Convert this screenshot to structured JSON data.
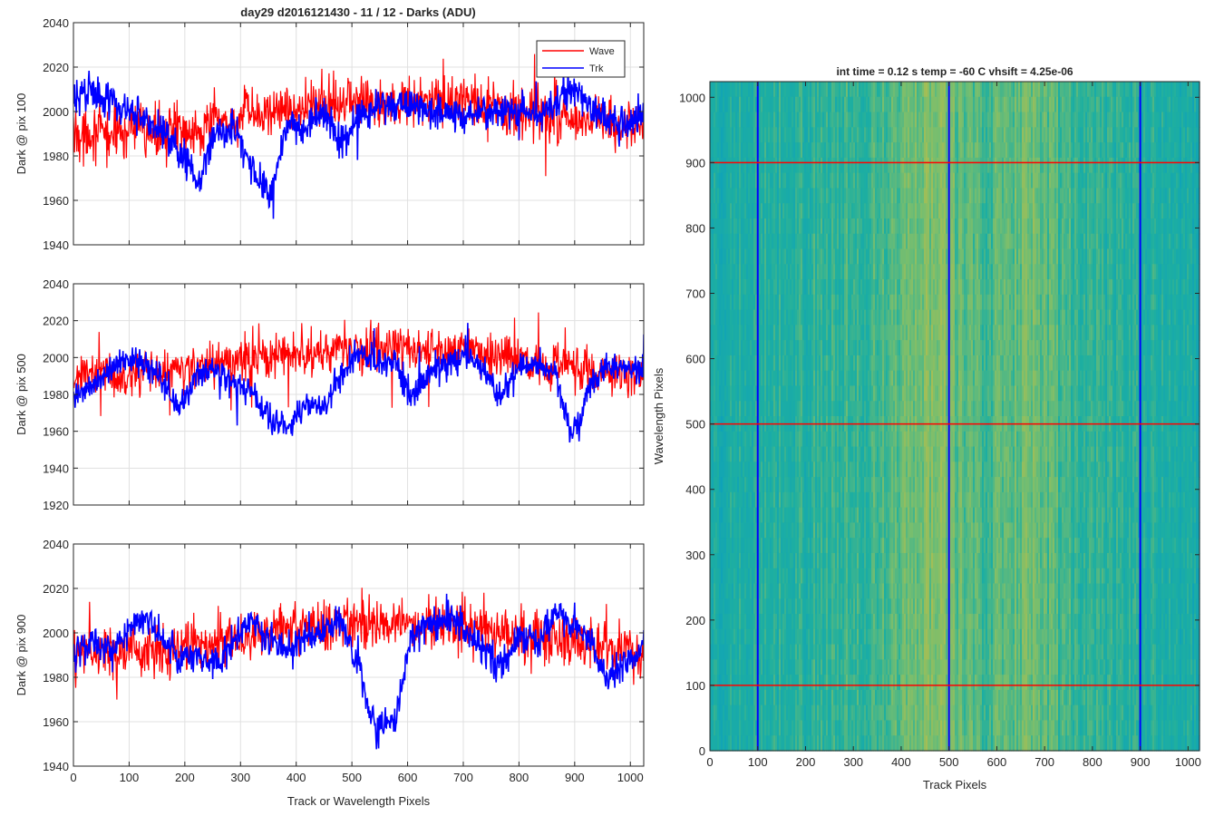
{
  "figure_title": "day29 d2016121430 - 11 / 12 - Darks (ADU)",
  "legend": {
    "wave": "Wave",
    "trk": "Trk"
  },
  "colors": {
    "wave": "#ff0000",
    "trk": "#0000ff",
    "grid": "#e0e0e0",
    "axis": "#262626"
  },
  "chart_data": [
    {
      "type": "line",
      "title": "day29 d2016121430 - 11 / 12 - Darks (ADU)",
      "xlabel": "",
      "ylabel": "Dark @ pix 100",
      "xlim": [
        0,
        1024
      ],
      "ylim": [
        1940,
        2040
      ],
      "xticks": [
        0,
        100,
        200,
        300,
        400,
        500,
        600,
        700,
        800,
        900,
        1000
      ],
      "xtick_labels": [
        "",
        "",
        "",
        "",
        "",
        "",
        "",
        "",
        "",
        "",
        ""
      ],
      "yticks": [
        1940,
        1960,
        1980,
        2000,
        2020,
        2040
      ],
      "grid": true,
      "legend_position": "top-right",
      "series": [
        {
          "name": "Wave",
          "color": "#ff0000",
          "x": [
            0,
            32,
            64,
            96,
            128,
            160,
            192,
            224,
            256,
            288,
            320,
            352,
            384,
            416,
            448,
            480,
            512,
            544,
            576,
            608,
            640,
            672,
            704,
            736,
            768,
            800,
            832,
            864,
            896,
            928,
            960,
            992,
            1024
          ],
          "y": [
            1990,
            1991,
            1989,
            1992,
            1991,
            1990,
            1992,
            1993,
            1995,
            1996,
            1998,
            2000,
            2001,
            2002,
            2004,
            2006,
            2005,
            2004,
            2003,
            2005,
            2004,
            2003,
            2003,
            2002,
            2000,
            2000,
            1999,
            1998,
            1997,
            1996,
            1995,
            1993,
            1993
          ]
        },
        {
          "name": "Trk",
          "color": "#0000ff",
          "x": [
            0,
            32,
            64,
            96,
            128,
            160,
            192,
            224,
            256,
            288,
            320,
            352,
            384,
            416,
            448,
            480,
            512,
            544,
            576,
            608,
            640,
            672,
            704,
            736,
            768,
            800,
            832,
            864,
            896,
            928,
            960,
            992,
            1024
          ],
          "y": [
            2005,
            2010,
            2006,
            2001,
            1998,
            1992,
            1982,
            1968,
            1990,
            1993,
            1975,
            1962,
            1995,
            1990,
            2002,
            1985,
            1998,
            2002,
            2004,
            2003,
            1998,
            2000,
            1996,
            2001,
            1999,
            2002,
            1998,
            2003,
            2010,
            2002,
            1996,
            1993,
            2000
          ]
        }
      ]
    },
    {
      "type": "line",
      "title": "",
      "xlabel": "",
      "ylabel": "Dark @ pix 500",
      "xlim": [
        0,
        1024
      ],
      "ylim": [
        1920,
        2040
      ],
      "xticks": [
        0,
        100,
        200,
        300,
        400,
        500,
        600,
        700,
        800,
        900,
        1000
      ],
      "xtick_labels": [
        "",
        "",
        "",
        "",
        "",
        "",
        "",
        "",
        "",
        "",
        ""
      ],
      "yticks": [
        1920,
        1940,
        1960,
        1980,
        2000,
        2020,
        2040
      ],
      "grid": true,
      "series": [
        {
          "name": "Wave",
          "color": "#ff0000",
          "x": [
            0,
            32,
            64,
            96,
            128,
            160,
            192,
            224,
            256,
            288,
            320,
            352,
            384,
            416,
            448,
            480,
            512,
            544,
            576,
            608,
            640,
            672,
            704,
            736,
            768,
            800,
            832,
            864,
            896,
            928,
            960,
            992,
            1024
          ],
          "y": [
            1990,
            1992,
            1991,
            1990,
            1992,
            1991,
            1993,
            1994,
            1996,
            1997,
            1999,
            2000,
            2001,
            2002,
            2003,
            2005,
            2004,
            2006,
            2005,
            2004,
            2003,
            2004,
            2005,
            2002,
            2000,
            1999,
            1998,
            1996,
            1995,
            1993,
            1991,
            1990,
            1988
          ]
        },
        {
          "name": "Trk",
          "color": "#0000ff",
          "x": [
            0,
            32,
            64,
            96,
            128,
            160,
            192,
            224,
            256,
            288,
            320,
            352,
            384,
            416,
            448,
            480,
            512,
            544,
            576,
            608,
            640,
            672,
            704,
            736,
            768,
            800,
            832,
            864,
            896,
            928,
            960,
            992,
            1024
          ],
          "y": [
            1978,
            1985,
            1993,
            1999,
            1996,
            1988,
            1970,
            1992,
            1993,
            1987,
            1980,
            1968,
            1962,
            1975,
            1973,
            1990,
            2002,
            1998,
            1995,
            1978,
            1992,
            1995,
            2003,
            1993,
            1978,
            1994,
            1996,
            1993,
            1955,
            1985,
            1994,
            1995,
            1993
          ]
        }
      ]
    },
    {
      "type": "line",
      "title": "",
      "xlabel": "Track or Wavelength Pixels",
      "ylabel": "Dark @ pix 900",
      "xlim": [
        0,
        1024
      ],
      "ylim": [
        1940,
        2040
      ],
      "xticks": [
        0,
        100,
        200,
        300,
        400,
        500,
        600,
        700,
        800,
        900,
        1000
      ],
      "xtick_labels": [
        "0",
        "100",
        "200",
        "300",
        "400",
        "500",
        "600",
        "700",
        "800",
        "900",
        "1000"
      ],
      "yticks": [
        1940,
        1960,
        1980,
        2000,
        2020,
        2040
      ],
      "grid": true,
      "series": [
        {
          "name": "Wave",
          "color": "#ff0000",
          "x": [
            0,
            32,
            64,
            96,
            128,
            160,
            192,
            224,
            256,
            288,
            320,
            352,
            384,
            416,
            448,
            480,
            512,
            544,
            576,
            608,
            640,
            672,
            704,
            736,
            768,
            800,
            832,
            864,
            896,
            928,
            960,
            992,
            1024
          ],
          "y": [
            1990,
            1992,
            1991,
            1993,
            1992,
            1991,
            1993,
            1994,
            1996,
            1998,
            1999,
            2001,
            2002,
            2004,
            2003,
            2005,
            2004,
            2003,
            2005,
            2004,
            2003,
            2004,
            2003,
            2002,
            2000,
            1999,
            1998,
            1997,
            1995,
            1994,
            1993,
            1992,
            1991
          ]
        },
        {
          "name": "Trk",
          "color": "#0000ff",
          "x": [
            0,
            32,
            64,
            96,
            128,
            160,
            192,
            224,
            256,
            288,
            320,
            352,
            384,
            416,
            448,
            480,
            512,
            544,
            576,
            608,
            640,
            672,
            704,
            736,
            768,
            800,
            832,
            864,
            896,
            928,
            960,
            992,
            1024
          ],
          "y": [
            1990,
            1996,
            1992,
            1999,
            2008,
            1997,
            1989,
            1990,
            1985,
            1996,
            2005,
            1998,
            1992,
            1998,
            2000,
            2007,
            1985,
            1955,
            1960,
            1999,
            2003,
            2006,
            2001,
            1992,
            1983,
            2000,
            1996,
            2009,
            2003,
            1995,
            1979,
            1988,
            1993
          ]
        }
      ]
    },
    {
      "type": "heatmap",
      "title": "int time = 0.12 s    temp = -60 C    vhsift = 4.25e-06",
      "xlabel": "Track Pixels",
      "ylabel": "Wavelength Pixels",
      "xlim": [
        0,
        1024
      ],
      "ylim": [
        0,
        1024
      ],
      "xticks": [
        0,
        100,
        200,
        300,
        400,
        500,
        600,
        700,
        800,
        900,
        1000
      ],
      "yticks": [
        0,
        100,
        200,
        300,
        400,
        500,
        600,
        700,
        800,
        900,
        1000
      ],
      "colormap": "parula",
      "hlines": {
        "color": "#ff0000",
        "values": [
          100,
          500,
          900
        ]
      },
      "vlines": {
        "color": "#0000ff",
        "values": [
          100,
          500,
          900
        ]
      },
      "column_profile": {
        "x": [
          0,
          64,
          128,
          192,
          256,
          320,
          384,
          448,
          480,
          512,
          576,
          640,
          672,
          704,
          768,
          832,
          896,
          960,
          1024
        ],
        "level": [
          0.38,
          0.42,
          0.44,
          0.45,
          0.47,
          0.5,
          0.55,
          0.64,
          0.66,
          0.58,
          0.52,
          0.58,
          0.62,
          0.56,
          0.48,
          0.45,
          0.44,
          0.42,
          0.4
        ]
      }
    }
  ]
}
